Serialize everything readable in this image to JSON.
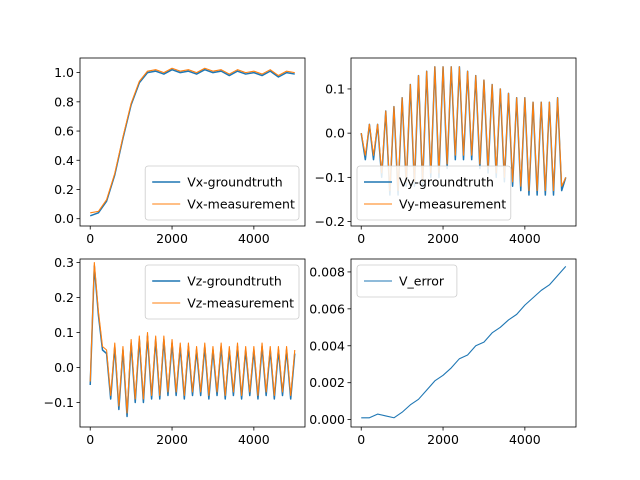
{
  "chart_data": [
    {
      "type": "line",
      "title": "",
      "xlabel": "",
      "ylabel": "",
      "xlim": [
        -250,
        5250
      ],
      "ylim": [
        -0.05,
        1.1
      ],
      "xticks": [
        0,
        2000,
        4000
      ],
      "xtick_labels": [
        "0",
        "2000",
        "4000"
      ],
      "yticks": [
        0.0,
        0.2,
        0.4,
        0.6,
        0.8,
        1.0
      ],
      "ytick_labels": [
        "0.0",
        "0.2",
        "0.4",
        "0.6",
        "0.8",
        "1.0"
      ],
      "grid": false,
      "legend_position": "lower-right",
      "x": [
        0,
        200,
        400,
        600,
        800,
        1000,
        1200,
        1400,
        1600,
        1800,
        2000,
        2200,
        2400,
        2600,
        2800,
        3000,
        3200,
        3400,
        3600,
        3800,
        4000,
        4200,
        4400,
        4600,
        4800,
        5000
      ],
      "series": [
        {
          "name": "Vx-groundtruth",
          "color": "#1f77b4",
          "values": [
            0.02,
            0.04,
            0.12,
            0.3,
            0.55,
            0.78,
            0.93,
            1.0,
            1.01,
            0.99,
            1.02,
            1.0,
            1.01,
            0.99,
            1.02,
            1.0,
            1.01,
            0.98,
            1.01,
            0.99,
            1.0,
            0.98,
            1.01,
            0.97,
            1.0,
            0.99
          ]
        },
        {
          "name": "Vx-measurement",
          "color": "#ff7f0e",
          "values": [
            0.04,
            0.05,
            0.13,
            0.31,
            0.56,
            0.79,
            0.94,
            1.01,
            1.02,
            1.0,
            1.03,
            1.01,
            1.02,
            1.0,
            1.03,
            1.01,
            1.02,
            0.99,
            1.02,
            1.0,
            1.01,
            0.99,
            1.02,
            0.98,
            1.01,
            1.0
          ]
        }
      ]
    },
    {
      "type": "line",
      "title": "",
      "xlabel": "",
      "ylabel": "",
      "xlim": [
        -250,
        5250
      ],
      "ylim": [
        -0.21,
        0.17
      ],
      "xticks": [
        0,
        2000,
        4000
      ],
      "xtick_labels": [
        "0",
        "2000",
        "4000"
      ],
      "yticks": [
        -0.2,
        -0.1,
        0.0,
        0.1
      ],
      "ytick_labels": [
        "−0.2",
        "−0.1",
        "0.0",
        "0.1"
      ],
      "grid": false,
      "legend_position": "lower-left",
      "x": [
        0,
        100,
        200,
        300,
        400,
        500,
        600,
        700,
        800,
        900,
        1000,
        1100,
        1200,
        1300,
        1400,
        1500,
        1600,
        1700,
        1800,
        1900,
        2000,
        2100,
        2200,
        2300,
        2400,
        2500,
        2600,
        2700,
        2800,
        2900,
        3000,
        3100,
        3200,
        3300,
        3400,
        3500,
        3600,
        3700,
        3800,
        3900,
        4000,
        4100,
        4200,
        4300,
        4400,
        4500,
        4600,
        4700,
        4800,
        4900,
        5000
      ],
      "series": [
        {
          "name": "Vy-groundtruth",
          "color": "#1f77b4",
          "values": [
            0.0,
            -0.06,
            0.02,
            -0.06,
            0.02,
            -0.1,
            0.05,
            -0.14,
            0.06,
            -0.14,
            0.08,
            -0.12,
            0.11,
            -0.12,
            0.13,
            -0.12,
            0.14,
            -0.1,
            0.15,
            -0.1,
            0.15,
            -0.08,
            0.15,
            -0.06,
            0.15,
            -0.06,
            0.14,
            -0.06,
            0.13,
            -0.08,
            0.12,
            -0.09,
            0.11,
            -0.1,
            0.1,
            -0.11,
            0.09,
            -0.12,
            0.08,
            -0.13,
            0.08,
            -0.14,
            0.07,
            -0.14,
            0.07,
            -0.14,
            0.07,
            -0.14,
            0.08,
            -0.13,
            -0.1
          ]
        },
        {
          "name": "Vy-measurement",
          "color": "#ff7f0e",
          "values": [
            0.0,
            -0.05,
            0.02,
            -0.05,
            0.02,
            -0.09,
            0.05,
            -0.13,
            0.06,
            -0.13,
            0.08,
            -0.11,
            0.11,
            -0.11,
            0.13,
            -0.11,
            0.14,
            -0.09,
            0.15,
            -0.09,
            0.15,
            -0.07,
            0.15,
            -0.05,
            0.15,
            -0.05,
            0.14,
            -0.05,
            0.13,
            -0.07,
            0.12,
            -0.08,
            0.11,
            -0.09,
            0.1,
            -0.1,
            0.09,
            -0.11,
            0.08,
            -0.12,
            0.08,
            -0.13,
            0.07,
            -0.13,
            0.07,
            -0.13,
            0.07,
            -0.13,
            0.08,
            -0.12,
            -0.1
          ]
        }
      ]
    },
    {
      "type": "line",
      "title": "",
      "xlabel": "",
      "ylabel": "",
      "xlim": [
        -250,
        5250
      ],
      "ylim": [
        -0.17,
        0.31
      ],
      "xticks": [
        0,
        2000,
        4000
      ],
      "xtick_labels": [
        "0",
        "2000",
        "4000"
      ],
      "yticks": [
        -0.1,
        0.0,
        0.1,
        0.2,
        0.3
      ],
      "ytick_labels": [
        "−0.1",
        "0.0",
        "0.1",
        "0.2",
        "0.3"
      ],
      "grid": false,
      "legend_position": "top-right",
      "x": [
        0,
        100,
        200,
        300,
        400,
        500,
        600,
        700,
        800,
        900,
        1000,
        1100,
        1200,
        1300,
        1400,
        1500,
        1600,
        1700,
        1800,
        1900,
        2000,
        2100,
        2200,
        2300,
        2400,
        2500,
        2600,
        2700,
        2800,
        2900,
        3000,
        3100,
        3200,
        3300,
        3400,
        3500,
        3600,
        3700,
        3800,
        3900,
        4000,
        4100,
        4200,
        4300,
        4400,
        4500,
        4600,
        4700,
        4800,
        4900,
        5000
      ],
      "series": [
        {
          "name": "Vz-groundtruth",
          "color": "#1f77b4",
          "values": [
            -0.05,
            0.29,
            0.15,
            0.05,
            0.04,
            -0.09,
            0.06,
            -0.12,
            0.05,
            -0.14,
            0.07,
            -0.1,
            0.08,
            -0.1,
            0.09,
            -0.09,
            0.08,
            -0.09,
            0.08,
            -0.08,
            0.07,
            -0.08,
            0.06,
            -0.09,
            0.06,
            -0.08,
            0.05,
            -0.08,
            0.06,
            -0.09,
            0.05,
            -0.08,
            0.06,
            -0.09,
            0.05,
            -0.08,
            0.06,
            -0.09,
            0.05,
            -0.08,
            0.05,
            -0.09,
            0.06,
            -0.08,
            0.05,
            -0.09,
            0.05,
            -0.08,
            0.05,
            -0.09,
            0.04
          ]
        },
        {
          "name": "Vz-measurement",
          "color": "#ff7f0e",
          "values": [
            -0.04,
            0.3,
            0.16,
            0.06,
            0.05,
            -0.08,
            0.07,
            -0.11,
            0.06,
            -0.13,
            0.08,
            -0.09,
            0.09,
            -0.09,
            0.1,
            -0.08,
            0.09,
            -0.08,
            0.09,
            -0.07,
            0.08,
            -0.07,
            0.07,
            -0.08,
            0.07,
            -0.07,
            0.06,
            -0.07,
            0.07,
            -0.08,
            0.06,
            -0.07,
            0.07,
            -0.08,
            0.06,
            -0.07,
            0.07,
            -0.08,
            0.06,
            -0.07,
            0.06,
            -0.08,
            0.07,
            -0.07,
            0.06,
            -0.08,
            0.06,
            -0.07,
            0.06,
            -0.08,
            0.05
          ]
        }
      ]
    },
    {
      "type": "line",
      "title": "",
      "xlabel": "",
      "ylabel": "",
      "xlim": [
        -250,
        5250
      ],
      "ylim": [
        -0.0004,
        0.0087
      ],
      "xticks": [
        0,
        2000,
        4000
      ],
      "xtick_labels": [
        "0",
        "2000",
        "4000"
      ],
      "yticks": [
        0.0,
        0.002,
        0.004,
        0.006,
        0.008
      ],
      "ytick_labels": [
        "0.000",
        "0.002",
        "0.004",
        "0.006",
        "0.008"
      ],
      "grid": false,
      "legend_position": "top-left",
      "x": [
        0,
        200,
        400,
        600,
        800,
        1000,
        1200,
        1400,
        1600,
        1800,
        2000,
        2200,
        2400,
        2600,
        2800,
        3000,
        3200,
        3400,
        3600,
        3800,
        4000,
        4200,
        4400,
        4600,
        4800,
        5000
      ],
      "series": [
        {
          "name": "V_error",
          "color": "#1f77b4",
          "values": [
            0.0001,
            0.0001,
            0.0003,
            0.0002,
            0.0001,
            0.0004,
            0.0008,
            0.0011,
            0.0016,
            0.0021,
            0.0024,
            0.0028,
            0.0033,
            0.0035,
            0.004,
            0.0042,
            0.0047,
            0.005,
            0.0054,
            0.0057,
            0.0062,
            0.0066,
            0.007,
            0.0073,
            0.0078,
            0.0083
          ]
        }
      ]
    }
  ]
}
